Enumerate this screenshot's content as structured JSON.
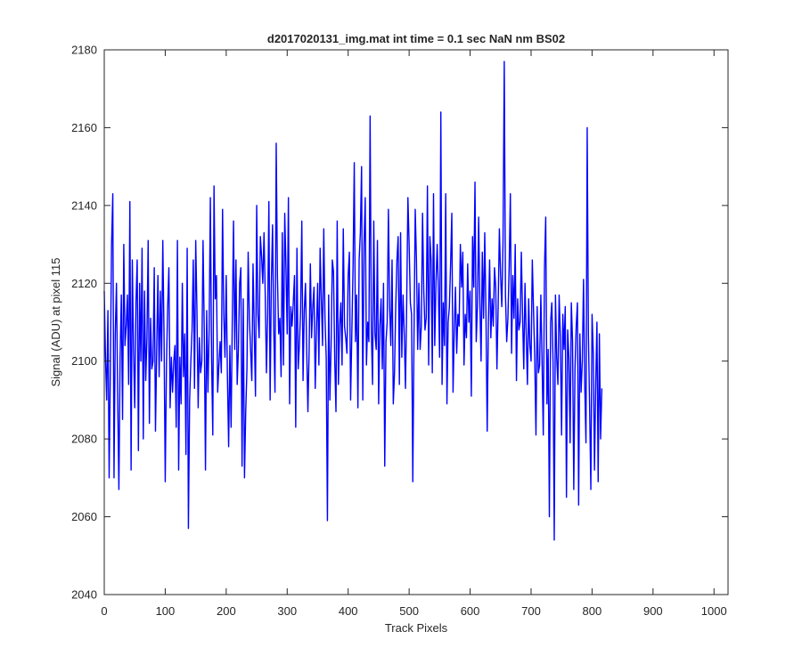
{
  "chart_data": {
    "type": "line",
    "title": "d2017020131_img.mat int time = 0.1 sec  NaN nm BS02",
    "xlabel": "Track Pixels",
    "ylabel": "Signal (ADU) at pixel 115",
    "xlim": [
      0,
      1023
    ],
    "ylim": [
      2040,
      2180
    ],
    "xticks": [
      0,
      100,
      200,
      300,
      400,
      500,
      600,
      700,
      800,
      900,
      1000
    ],
    "yticks": [
      2040,
      2060,
      2080,
      2100,
      2120,
      2140,
      2160,
      2180
    ],
    "grid": false,
    "legend": "none",
    "series": [
      {
        "color": "#0000ff",
        "sample_step": 2,
        "x_start": 0,
        "values": [
          2118,
          2101,
          2090,
          2113,
          2070,
          2098,
          2130,
          2143,
          2070,
          2107,
          2120,
          2091,
          2067,
          2101,
          2117,
          2085,
          2130,
          2104,
          2109,
          2117,
          2094,
          2141,
          2072,
          2126,
          2103,
          2088,
          2115,
          2126,
          2077,
          2120,
          2100,
          2129,
          2080,
          2118,
          2095,
          2106,
          2131,
          2084,
          2111,
          2098,
          2100,
          2124,
          2082,
          2103,
          2122,
          2096,
          2118,
          2100,
          2131,
          2107,
          2069,
          2099,
          2114,
          2124,
          2088,
          2101,
          2092,
          2100,
          2104,
          2083,
          2131,
          2072,
          2101,
          2089,
          2120,
          2096,
          2107,
          2076,
          2129,
          2057,
          2090,
          2100,
          2108,
          2126,
          2093,
          2131,
          2113,
          2088,
          2106,
          2097,
          2100,
          2131,
          2108,
          2072,
          2113,
          2092,
          2108,
          2142,
          2101,
          2081,
          2145,
          2116,
          2122,
          2092,
          2099,
          2105,
          2097,
          2139,
          2112,
          2101,
          2122,
          2096,
          2078,
          2104,
          2083,
          2111,
          2136,
          2103,
          2126,
          2094,
          2103,
          2120,
          2124,
          2073,
          2116,
          2070,
          2087,
          2098,
          2128,
          2111,
          2103,
          2095,
          2125,
          2108,
          2091,
          2140,
          2112,
          2106,
          2132,
          2127,
          2120,
          2133,
          2117,
          2097,
          2112,
          2141,
          2090,
          2120,
          2135,
          2108,
          2092,
          2156,
          2122,
          2107,
          2111,
          2096,
          2133,
          2099,
          2138,
          2124,
          2107,
          2142,
          2089,
          2114,
          2109,
          2115,
          2122,
          2083,
          2129,
          2098,
          2104,
          2113,
          2136,
          2095,
          2113,
          2120,
          2103,
          2087,
          2103,
          2125,
          2106,
          2114,
          2119,
          2093,
          2108,
          2120,
          2099,
          2129,
          2116,
          2104,
          2134,
          2111,
          2101,
          2059,
          2117,
          2090,
          2104,
          2126,
          2123,
          2100,
          2087,
          2136,
          2094,
          2109,
          2115,
          2099,
          2134,
          2109,
          2106,
          2102,
          2122,
          2128,
          2090,
          2107,
          2124,
          2151,
          2105,
          2117,
          2088,
          2126,
          2133,
          2150,
          2090,
          2130,
          2142,
          2099,
          2110,
          2105,
          2163,
          2108,
          2094,
          2136,
          2107,
          2103,
          2131,
          2089,
          2109,
          2116,
          2098,
          2120,
          2073,
          2105,
          2110,
          2139,
          2114,
          2104,
          2126,
          2089,
          2097,
          2114,
          2126,
          2132,
          2094,
          2133,
          2101,
          2117,
          2107,
          2093,
          2115,
          2142,
          2130,
          2115,
          2112,
          2069,
          2107,
          2139,
          2126,
          2103,
          2120,
          2103,
          2109,
          2138,
          2118,
          2108,
          2111,
          2145,
          2099,
          2132,
          2126,
          2097,
          2143,
          2104,
          2120,
          2130,
          2118,
          2101,
          2164,
          2094,
          2115,
          2104,
          2143,
          2089,
          2110,
          2114,
          2125,
          2138,
          2092,
          2108,
          2119,
          2102,
          2112,
          2109,
          2130,
          2119,
          2128,
          2099,
          2112,
          2106,
          2125,
          2110,
          2118,
          2091,
          2132,
          2119,
          2146,
          2105,
          2114,
          2137,
          2115,
          2100,
          2128,
          2111,
          2133,
          2112,
          2082,
          2110,
          2126,
          2106,
          2116,
          2109,
          2124,
          2119,
          2098,
          2114,
          2134,
          2122,
          2114,
          2131,
          2177,
          2117,
          2105,
          2111,
          2124,
          2143,
          2102,
          2122,
          2111,
          2130,
          2095,
          2116,
          2108,
          2110,
          2128,
          2112,
          2098,
          2120,
          2107,
          2094,
          2116,
          2104,
          2100,
          2126,
          2113,
          2101,
          2081,
          2114,
          2097,
          2099,
          2117,
          2100,
          2081,
          2124,
          2137,
          2089,
          2103,
          2060,
          2110,
          2115,
          2100,
          2054,
          2117,
          2101,
          2094,
          2117,
          2106,
          2081,
          2112,
          2103,
          2114,
          2065,
          2108,
          2101,
          2079,
          2115,
          2105,
          2067,
          2098,
          2109,
          2115,
          2063,
          2107,
          2092,
          2100,
          2121,
          2094,
          2079,
          2160,
          2107,
          2088,
          2067,
          2112,
          2102,
          2072,
          2094,
          2110,
          2069,
          2107,
          2080,
          2093
        ]
      }
    ]
  }
}
